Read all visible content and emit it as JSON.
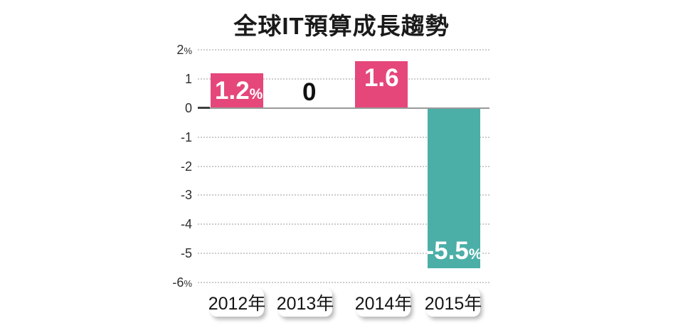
{
  "page": {
    "background": "#ffffff"
  },
  "title": "全球IT預算成長趨勢",
  "chart_data": {
    "type": "bar",
    "title": "全球IT預算成長趨勢",
    "categories": [
      "2012年",
      "2013年",
      "2014年",
      "2015年"
    ],
    "values": [
      1.2,
      0,
      1.6,
      -5.5
    ],
    "unit": "%",
    "bar_labels": [
      {
        "number": "1.2",
        "suffix": "%",
        "placement": "middle-left"
      },
      {
        "number": "0",
        "suffix": "",
        "placement": "above-axis"
      },
      {
        "number": "1.6",
        "suffix": "",
        "placement": "top-center"
      },
      {
        "number": "-5.5",
        "suffix": "%",
        "placement": "bottom-center"
      }
    ],
    "series_colors": {
      "positive": "#e5477a",
      "negative": "#4bafa8"
    },
    "ylim": [
      -6,
      2
    ],
    "yticks": [
      {
        "value": 2,
        "label": "2",
        "suffix": "%"
      },
      {
        "value": 1,
        "label": "1",
        "suffix": ""
      },
      {
        "value": 0,
        "label": "0",
        "suffix": ""
      },
      {
        "value": -1,
        "label": "-1",
        "suffix": ""
      },
      {
        "value": -2,
        "label": "-2",
        "suffix": ""
      },
      {
        "value": -3,
        "label": "-3",
        "suffix": ""
      },
      {
        "value": -4,
        "label": "-4",
        "suffix": ""
      },
      {
        "value": -5,
        "label": "-5",
        "suffix": ""
      },
      {
        "value": -6,
        "label": "-6",
        "suffix": "%"
      }
    ],
    "grid": {
      "horizontal": "dotted",
      "color": "#cccccc",
      "zero_line_color": "#999999"
    },
    "legend": "none",
    "category_label_style": "rounded-white-box"
  }
}
